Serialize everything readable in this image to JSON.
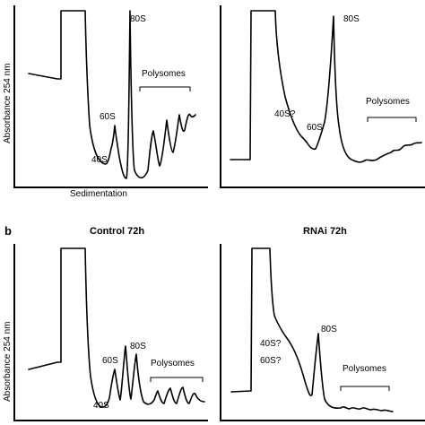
{
  "figure": {
    "panel_b": "b"
  },
  "chart_data": [
    {
      "type": "line",
      "title": "",
      "xlabel": "Sedimentation",
      "ylabel": "Absorbance 254 nm",
      "annotations": [
        "40S",
        "60S",
        "80S",
        "Polysomes"
      ]
    },
    {
      "type": "line",
      "title": "",
      "xlabel": "",
      "ylabel": "",
      "annotations": [
        "40S?",
        "60S",
        "80S",
        "Polysomes"
      ]
    },
    {
      "type": "line",
      "title": "Control 72h",
      "xlabel": "",
      "ylabel": "Absorbance 254 nm",
      "annotations": [
        "40S",
        "60S",
        "80S",
        "Polysomes"
      ]
    },
    {
      "type": "line",
      "title": "RNAi 72h",
      "xlabel": "",
      "ylabel": "",
      "annotations": [
        "40S?",
        "60S?",
        "80S",
        "Polysomes"
      ]
    }
  ]
}
